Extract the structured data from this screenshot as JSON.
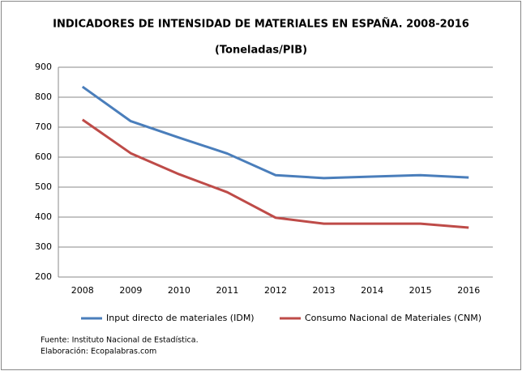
{
  "chart_data": {
    "type": "line",
    "title": "INDICADORES DE INTENSIDAD DE MATERIALES EN ESPAÑA. 2008-2016",
    "subtitle": "(Toneladas/PIB)",
    "categories": [
      "2008",
      "2009",
      "2010",
      "2011",
      "2012",
      "2013",
      "2014",
      "2015",
      "2016"
    ],
    "series": [
      {
        "name": "Input directo de materiales (IDM)",
        "color": "#4a7ebb",
        "values": [
          835,
          720,
          665,
          612,
          540,
          530,
          535,
          540,
          532
        ]
      },
      {
        "name": "Consumo Nacional de Materiales (CNM)",
        "color": "#be4b48",
        "values": [
          725,
          613,
          543,
          483,
          398,
          378,
          378,
          378,
          365
        ]
      }
    ],
    "ylim": [
      200,
      900
    ],
    "yticks": [
      200,
      300,
      400,
      500,
      600,
      700,
      800,
      900
    ],
    "grid": true,
    "legend": "bottom",
    "source": "Fuente: Instituto Nacional de Estadística.",
    "credit": "Elaboración: Ecopalabras.com"
  }
}
